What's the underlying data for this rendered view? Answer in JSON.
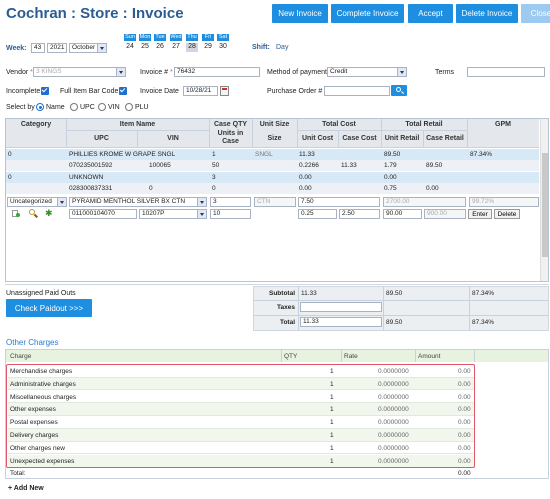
{
  "header": {
    "title": "Cochran : Store : Invoice",
    "buttons": [
      "New Invoice",
      "Complete Invoice",
      "Accept",
      "Delete Invoice",
      "Close"
    ]
  },
  "week": {
    "label": "Week:",
    "number": "43",
    "year": "2021",
    "month": "October",
    "day_names": [
      "Sun",
      "Mon",
      "Tue",
      "Wed",
      "Thu",
      "Fri",
      "Sat"
    ],
    "days": [
      "24",
      "25",
      "26",
      "27",
      "28",
      "29",
      "30"
    ],
    "selected_day": "28",
    "shift_label": "Shift:",
    "shift_value": "Day"
  },
  "form": {
    "vendor_label": "Vendor",
    "vendor_value": "3 KINGS",
    "invoice_label": "Invoice #",
    "invoice_value": "76432",
    "payment_label": "Method of payment",
    "payment_value": "Credit",
    "terms_label": "Terms",
    "incomplete_label": "Incomplete",
    "full_barcode_label": "Full Item Bar Code",
    "invoice_date_label": "Invoice Date",
    "invoice_date_value": "10/28/21",
    "po_label": "Purchase Order #",
    "select_by_label": "Select by",
    "select_by_options": [
      "Name",
      "UPC",
      "VIN",
      "PLU"
    ],
    "select_by_selected": "Name"
  },
  "grid": {
    "headers_top": [
      "Category",
      "Item Name",
      "Case QTY",
      "Unit Size",
      "Total Cost",
      "Total Retail",
      "GPM"
    ],
    "headers_sub": [
      "UPC",
      "VIN",
      "Units in Case",
      "Size",
      "Unit Cost",
      "Case Cost",
      "Unit Retail",
      "Case Retail"
    ],
    "rows": [
      {
        "category": "0",
        "name": "PHILLIES KROME W GRAPE SNGL",
        "case_qty": "1",
        "unit_size": "SNGL",
        "total_cost": "11.33",
        "total_retail": "89.50",
        "gpm": "87.34%",
        "upc": "070235001592",
        "vin": "100065",
        "units": "50",
        "unit_cost": "0.2266",
        "case_cost": "11.33",
        "unit_retail": "1.79",
        "case_retail": "89.50"
      },
      {
        "category": "0",
        "name": "UNKNOWN",
        "case_qty": "3",
        "unit_size": "",
        "total_cost": "0.00",
        "total_retail": "0.00",
        "gpm": "",
        "upc": "028300837331",
        "vin": "0",
        "units": "0",
        "unit_cost": "0.00",
        "case_cost": "",
        "unit_retail": "0.75",
        "case_retail": "0.00"
      }
    ],
    "edit_row": {
      "category": "Uncategorized",
      "name": "PYRAMID MENTHOL SILVER BX CTN",
      "case_qty": "3",
      "unit_size": "CTN",
      "total_cost": "7.50",
      "total_retail": "2700.00",
      "gpm": "99.72%",
      "upc": "011000104070",
      "vin": "10207P",
      "units": "10",
      "unit_cost": "0.25",
      "case_cost": "2.50",
      "unit_retail": "90.00",
      "case_retail": "900.00",
      "enter_label": "Enter",
      "delete_label": "Delete"
    }
  },
  "totals": {
    "unassigned_label": "Unassigned Paid Outs",
    "check_paidout_label": "Check Paidout >>>",
    "subtotal_label": "Subtotal",
    "subtotal_cost": "11.33",
    "subtotal_retail": "89.50",
    "subtotal_gpm": "87.34%",
    "taxes_label": "Taxes",
    "total_label": "Total",
    "total_cost": "11.33",
    "total_retail": "89.50",
    "total_gpm": "87.34%"
  },
  "other_charges": {
    "title": "Other Charges",
    "headers": [
      "Charge",
      "QTY",
      "Rate",
      "Amount"
    ],
    "rows": [
      {
        "charge": "Merchandise charges",
        "qty": "1",
        "rate": "0.0000000",
        "amount": "0.00"
      },
      {
        "charge": "Administrative charges",
        "qty": "1",
        "rate": "0.0000000",
        "amount": "0.00"
      },
      {
        "charge": "Miscellaneous charges",
        "qty": "1",
        "rate": "0.0000000",
        "amount": "0.00"
      },
      {
        "charge": "Other expenses",
        "qty": "1",
        "rate": "0.0000000",
        "amount": "0.00"
      },
      {
        "charge": "Postal expenses",
        "qty": "1",
        "rate": "0.0000000",
        "amount": "0.00"
      },
      {
        "charge": "Delivery charges",
        "qty": "1",
        "rate": "0.0000000",
        "amount": "0.00"
      },
      {
        "charge": "Other charges new",
        "qty": "1",
        "rate": "0.0000000",
        "amount": "0.00"
      },
      {
        "charge": "Unexpected expenses",
        "qty": "1",
        "rate": "0.0000000",
        "amount": "0.00"
      }
    ],
    "total_label": "Total:",
    "total_value": "0.00",
    "add_new_label": "+ Add New"
  },
  "colors": {
    "accent": "#1e8fe0",
    "title": "#2b5c93",
    "highlight_border": "#e0566a"
  }
}
